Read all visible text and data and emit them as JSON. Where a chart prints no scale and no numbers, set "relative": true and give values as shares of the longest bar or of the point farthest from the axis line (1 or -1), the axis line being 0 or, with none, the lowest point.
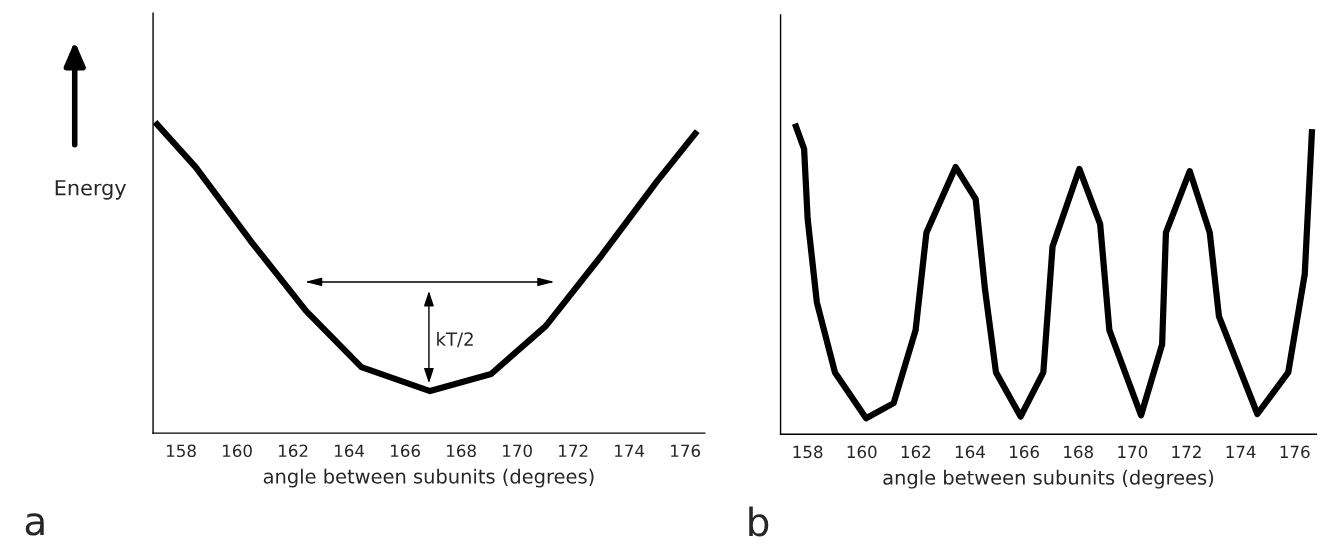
{
  "chart_data": [
    {
      "type": "line",
      "relative": true,
      "xlabel": "angle between subunits (degrees)",
      "ylabel": "Energy",
      "tick_labels": "x",
      "xlim": [
        157,
        176.7
      ],
      "xticks": [
        158,
        160,
        162,
        164,
        166,
        168,
        170,
        172,
        174,
        176
      ],
      "series": [
        {
          "color": "#000000",
          "x": [
            157.07,
            158.52,
            160.49,
            162.47,
            164.44,
            166.89,
            169.07,
            171.02,
            173.02,
            175.0,
            176.43
          ],
          "values": [
            1.0,
            0.855,
            0.617,
            0.392,
            0.212,
            0.135,
            0.19,
            0.344,
            0.572,
            0.81,
            0.971
          ]
        }
      ],
      "annotations": [
        "kT/2",
        "a"
      ]
    },
    {
      "type": "line",
      "relative": true,
      "xlabel": "angle between subunits (degrees)",
      "tick_labels": "x",
      "xlim": [
        157,
        176.8
      ],
      "xticks": [
        158,
        160,
        162,
        164,
        166,
        168,
        170,
        172,
        174,
        176
      ],
      "series": [
        {
          "color": "#000000",
          "x": [
            157.53,
            157.87,
            158.0,
            158.34,
            159.01,
            160.16,
            161.18,
            161.99,
            162.39,
            163.47,
            164.21,
            164.55,
            164.96,
            165.87,
            166.71,
            167.05,
            168.04,
            168.81,
            169.15,
            170.32,
            171.1,
            171.24,
            172.12,
            172.86,
            173.2,
            174.62,
            175.76,
            176.37,
            176.64
          ],
          "values": [
            1.0,
            0.918,
            0.694,
            0.425,
            0.199,
            0.051,
            0.1,
            0.335,
            0.649,
            0.86,
            0.757,
            0.469,
            0.199,
            0.057,
            0.199,
            0.604,
            0.854,
            0.676,
            0.335,
            0.061,
            0.289,
            0.649,
            0.847,
            0.649,
            0.379,
            0.065,
            0.199,
            0.515,
            0.982
          ]
        }
      ],
      "annotations": [
        "b"
      ]
    }
  ]
}
